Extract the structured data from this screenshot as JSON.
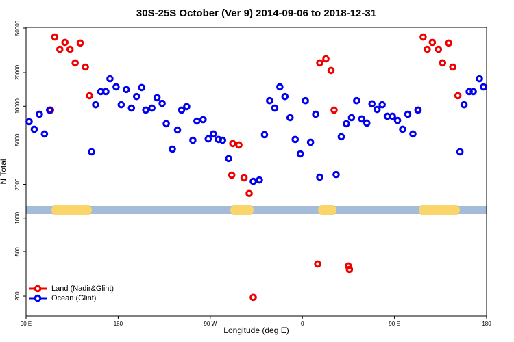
{
  "chart_data": {
    "type": "scatter",
    "title": "30S-25S October (Ver 9)   2014-09-06 to 2018-12-31",
    "x_label": "Longitude (deg E)",
    "y_label": "N Total",
    "log_y": true,
    "legend": "bottom left",
    "xlim": [
      90,
      540
    ],
    "ylim": [
      133,
      50700
    ],
    "xticks": [
      {
        "value": 90,
        "label": "90 E"
      },
      {
        "value": 180,
        "label": "180"
      },
      {
        "value": 270,
        "label": "90 W"
      },
      {
        "value": 360,
        "label": "0"
      },
      {
        "value": 450,
        "label": "90 E"
      },
      {
        "value": 540,
        "label": "180"
      }
    ],
    "yticks": [
      200,
      500,
      1000,
      2000,
      5000,
      10000,
      20000,
      50000
    ],
    "series": [
      {
        "name": "Land (Nadir&Glint)",
        "color": "#ee0000",
        "x": [
          114,
          118,
          123,
          128,
          133,
          138,
          143,
          148,
          152,
          291,
          292,
          298,
          303,
          308,
          312,
          375,
          377,
          383,
          388,
          391,
          405,
          406,
          473,
          478,
          482,
          487,
          493,
          497,
          503,
          507,
          512
        ],
        "values": [
          9230,
          41600,
          32300,
          37200,
          32300,
          24400,
          36700,
          22400,
          12400,
          2420,
          4630,
          4500,
          2290,
          1660,
          195,
          388,
          24400,
          26500,
          20900,
          9230,
          372,
          347,
          9230,
          41600,
          32300,
          37200,
          32300,
          24400,
          36700,
          22400,
          12400
        ]
      },
      {
        "name": "Ocean (Glint)",
        "color": "#0000ee",
        "x": [
          93,
          98,
          103,
          108,
          113,
          154,
          158,
          163,
          168,
          172,
          178,
          183,
          188,
          193,
          198,
          203,
          207,
          213,
          218,
          223,
          227,
          233,
          238,
          242,
          247,
          253,
          257,
          263,
          268,
          273,
          278,
          282,
          288,
          312,
          318,
          323,
          328,
          333,
          338,
          343,
          348,
          353,
          358,
          363,
          368,
          373,
          377,
          393,
          398,
          403,
          408,
          413,
          418,
          423,
          428,
          433,
          438,
          443,
          448,
          453,
          458,
          463,
          468,
          473,
          514,
          518,
          523,
          527,
          533,
          537
        ],
        "values": [
          7260,
          6220,
          8470,
          5640,
          9230,
          3910,
          10300,
          13500,
          13500,
          17600,
          14900,
          10300,
          14100,
          9620,
          12200,
          14700,
          9230,
          9620,
          11900,
          10600,
          6970,
          4130,
          6130,
          9230,
          9910,
          4960,
          7360,
          7570,
          5100,
          5640,
          5040,
          4960,
          3400,
          2130,
          2190,
          5560,
          11200,
          9620,
          14900,
          12200,
          7900,
          5040,
          3750,
          11200,
          4760,
          8470,
          2320,
          2450,
          5330,
          6970,
          7900,
          11200,
          7690,
          7060,
          10500,
          9350,
          10300,
          8130,
          8130,
          7460,
          6220,
          8470,
          5640,
          9230,
          3910,
          10300,
          13500,
          13500,
          17600,
          14900
        ]
      }
    ]
  }
}
